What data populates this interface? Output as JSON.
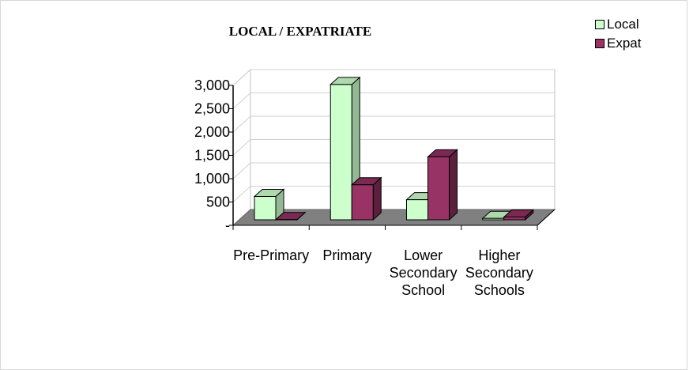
{
  "chart_data": {
    "type": "bar",
    "title": "LOCAL / EXPATRIATE",
    "categories": [
      [
        "Pre-Primary"
      ],
      [
        "Primary"
      ],
      [
        "Lower",
        "Secondary",
        "School"
      ],
      [
        "Higher",
        "Secondary",
        "Schools"
      ]
    ],
    "series": [
      {
        "name": "Local",
        "color": "#ccffcc",
        "values": [
          500,
          2900,
          430,
          30
        ]
      },
      {
        "name": "Expat",
        "color": "#993366",
        "values": [
          5,
          750,
          1350,
          60
        ]
      }
    ],
    "yticks": [
      "-",
      "500",
      "1,000",
      "1,500",
      "2,000",
      "2,500",
      "3,000"
    ],
    "ylim": [
      0,
      3000
    ],
    "legend_position": "top-right",
    "grid": true,
    "three_d": true
  }
}
